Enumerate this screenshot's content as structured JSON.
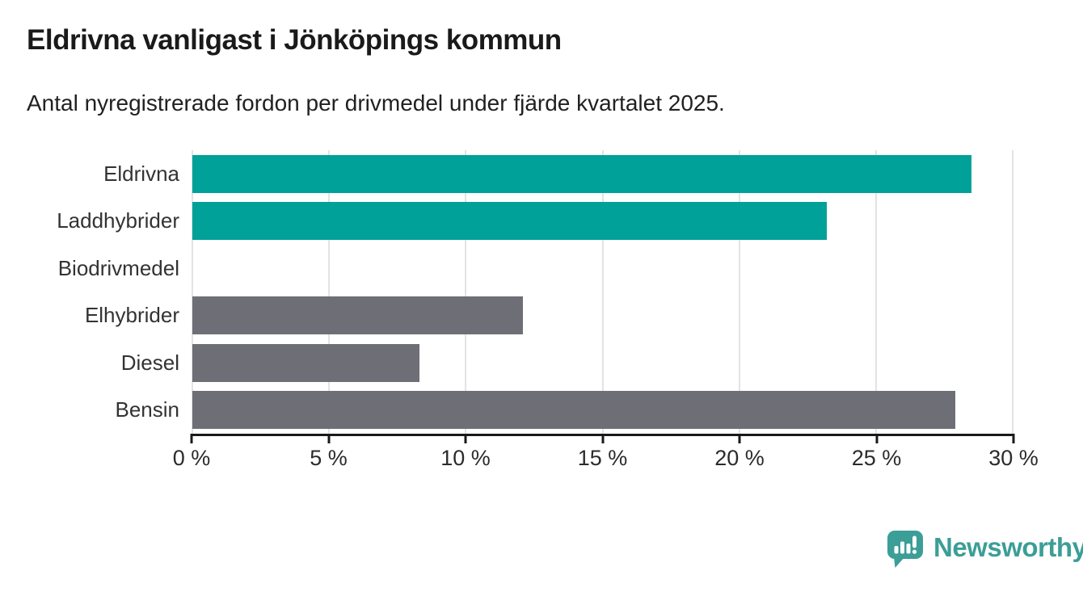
{
  "header": {
    "title": "Eldrivna vanligast i Jönköpings kommun",
    "subtitle": "Antal nyregistrerade fordon per drivmedel under fjärde kvartalet 2025."
  },
  "chart_data": {
    "type": "bar",
    "orientation": "horizontal",
    "title": "Eldrivna vanligast i Jönköpings kommun",
    "subtitle": "Antal nyregistrerade fordon per drivmedel under fjärde kvartalet 2025.",
    "categories": [
      "Eldrivna",
      "Laddhybrider",
      "Biodrivmedel",
      "Elhybrider",
      "Diesel",
      "Bensin"
    ],
    "values": [
      28.5,
      23.2,
      0,
      12.1,
      8.3,
      27.9
    ],
    "unit": "%",
    "bar_colors": [
      "#00a198",
      "#00a198",
      "#6e6e76",
      "#6e6e76",
      "#6e6e76",
      "#6e6e76"
    ],
    "xlim": [
      0,
      30
    ],
    "xticks": [
      0,
      5,
      10,
      15,
      20,
      25,
      30
    ],
    "xtick_labels": [
      "0 %",
      "5 %",
      "10 %",
      "15 %",
      "20 %",
      "25 %",
      "30 %"
    ],
    "grid": "vertical",
    "legend": "none"
  },
  "colors": {
    "accent_teal": "#00a198",
    "neutral_gray": "#6e6e76",
    "gridline": "#e3e3e3",
    "axis": "#1a1a1a",
    "logo_teal": "#3b9e97"
  },
  "branding": {
    "logo_text": "Newsworthy",
    "logo_icon": "bar-chart-speech-bubble-icon"
  }
}
